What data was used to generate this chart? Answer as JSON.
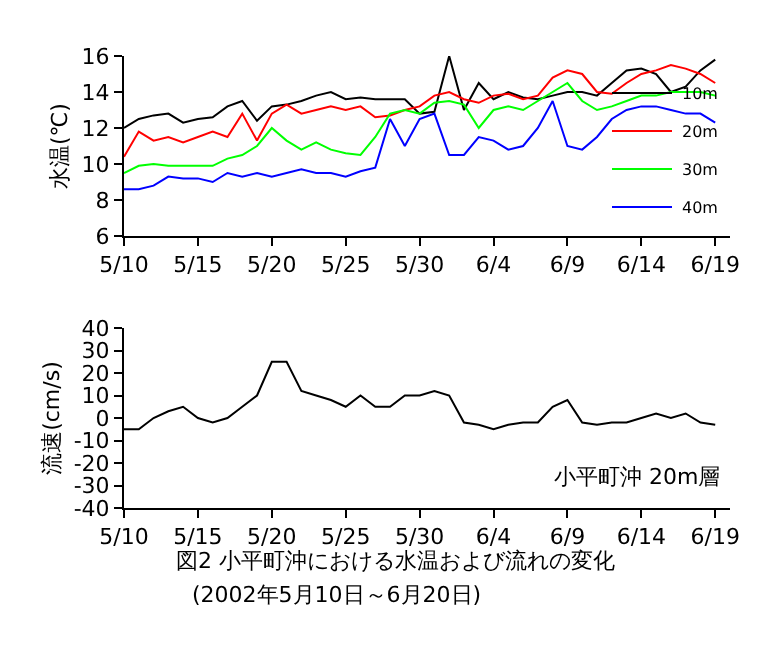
{
  "chart_data": [
    {
      "type": "line",
      "ylabel": "水温(℃)",
      "xlim": [
        "2002-05-10",
        "2002-06-20"
      ],
      "ylim": [
        6,
        16
      ],
      "yticks": [
        6,
        8,
        10,
        12,
        14,
        16
      ],
      "xticks": [
        {
          "value": "2002-05-10",
          "label": "5/10"
        },
        {
          "value": "2002-05-15",
          "label": "5/15"
        },
        {
          "value": "2002-05-20",
          "label": "5/20"
        },
        {
          "value": "2002-05-25",
          "label": "5/25"
        },
        {
          "value": "2002-05-30",
          "label": "5/30"
        },
        {
          "value": "2002-06-04",
          "label": "6/4"
        },
        {
          "value": "2002-06-09",
          "label": "6/9"
        },
        {
          "value": "2002-06-14",
          "label": "6/14"
        },
        {
          "value": "2002-06-19",
          "label": "6/19"
        }
      ],
      "x": [
        "2002-05-10",
        "2002-05-11",
        "2002-05-12",
        "2002-05-13",
        "2002-05-14",
        "2002-05-15",
        "2002-05-16",
        "2002-05-17",
        "2002-05-18",
        "2002-05-19",
        "2002-05-20",
        "2002-05-21",
        "2002-05-22",
        "2002-05-23",
        "2002-05-24",
        "2002-05-25",
        "2002-05-26",
        "2002-05-27",
        "2002-05-28",
        "2002-05-29",
        "2002-05-30",
        "2002-05-31",
        "2002-06-01",
        "2002-06-02",
        "2002-06-03",
        "2002-06-04",
        "2002-06-05",
        "2002-06-06",
        "2002-06-07",
        "2002-06-08",
        "2002-06-09",
        "2002-06-10",
        "2002-06-11",
        "2002-06-12",
        "2002-06-13",
        "2002-06-14",
        "2002-06-15",
        "2002-06-16",
        "2002-06-17",
        "2002-06-18",
        "2002-06-19"
      ],
      "legend": "bottom right",
      "marker": "none",
      "line_style": "solid",
      "series": [
        {
          "name": "10m",
          "color": "#000000",
          "values": [
            12,
            12.5,
            12.7,
            12.8,
            12.3,
            12.5,
            12.6,
            13.2,
            13.5,
            12.4,
            13.2,
            13.3,
            13.5,
            13.8,
            14.0,
            13.6,
            13.7,
            13.6,
            13.6,
            13.6,
            12.8,
            12.9,
            16.0,
            13.0,
            14.5,
            13.6,
            14.0,
            13.7,
            13.6,
            13.8,
            14.0,
            14.0,
            13.8,
            14.5,
            15.2,
            15.3,
            15.0,
            14.0,
            14.3,
            15.2,
            15.8
          ]
        },
        {
          "name": "20m",
          "color": "#ff0000",
          "values": [
            10.4,
            11.8,
            11.3,
            11.5,
            11.2,
            11.5,
            11.8,
            11.5,
            12.8,
            11.3,
            12.8,
            13.3,
            12.8,
            13.0,
            13.2,
            13.0,
            13.2,
            12.6,
            12.7,
            13.0,
            13.2,
            13.8,
            14.0,
            13.6,
            13.4,
            13.8,
            13.9,
            13.6,
            13.8,
            14.8,
            15.2,
            15.0,
            14.0,
            13.9,
            14.5,
            15.0,
            15.2,
            15.5,
            15.3,
            15.0,
            14.5
          ]
        },
        {
          "name": "30m",
          "color": "#00ff00",
          "values": [
            9.5,
            9.9,
            10.0,
            9.9,
            9.9,
            9.9,
            9.9,
            10.3,
            10.5,
            11.0,
            12.0,
            11.3,
            10.8,
            11.2,
            10.8,
            10.6,
            10.5,
            11.5,
            12.8,
            13.0,
            12.8,
            13.4,
            13.5,
            13.3,
            12.0,
            13.0,
            13.2,
            13.0,
            13.5,
            14.0,
            14.5,
            13.5,
            13.0,
            13.2,
            13.5,
            13.8,
            13.8,
            14.0,
            14.0,
            14.0,
            13.8
          ]
        },
        {
          "name": "40m",
          "color": "#0000ff",
          "values": [
            8.6,
            8.6,
            8.8,
            9.3,
            9.2,
            9.2,
            9.0,
            9.5,
            9.3,
            9.5,
            9.3,
            9.5,
            9.7,
            9.5,
            9.5,
            9.3,
            9.6,
            9.8,
            12.5,
            11.0,
            12.5,
            12.8,
            10.5,
            10.5,
            11.5,
            11.3,
            10.8,
            11.0,
            12.0,
            13.5,
            11.0,
            10.8,
            11.5,
            12.5,
            13.0,
            13.2,
            13.2,
            13.0,
            12.8,
            12.8,
            12.3
          ]
        }
      ]
    },
    {
      "type": "line",
      "ylabel": "流速(cm/s)",
      "xlim": [
        "2002-05-10",
        "2002-06-20"
      ],
      "ylim": [
        -40,
        40
      ],
      "yticks": [
        -40,
        -30,
        -20,
        -10,
        0,
        10,
        20,
        30,
        40
      ],
      "xticks": [
        {
          "value": "2002-05-10",
          "label": "5/10"
        },
        {
          "value": "2002-05-15",
          "label": "5/15"
        },
        {
          "value": "2002-05-20",
          "label": "5/20"
        },
        {
          "value": "2002-05-25",
          "label": "5/25"
        },
        {
          "value": "2002-05-30",
          "label": "5/30"
        },
        {
          "value": "2002-06-04",
          "label": "6/4"
        },
        {
          "value": "2002-06-09",
          "label": "6/9"
        },
        {
          "value": "2002-06-14",
          "label": "6/14"
        },
        {
          "value": "2002-06-19",
          "label": "6/19"
        }
      ],
      "x": [
        "2002-05-10",
        "2002-05-11",
        "2002-05-12",
        "2002-05-13",
        "2002-05-14",
        "2002-05-15",
        "2002-05-16",
        "2002-05-17",
        "2002-05-18",
        "2002-05-19",
        "2002-05-20",
        "2002-05-21",
        "2002-05-22",
        "2002-05-23",
        "2002-05-24",
        "2002-05-25",
        "2002-05-26",
        "2002-05-27",
        "2002-05-28",
        "2002-05-29",
        "2002-05-30",
        "2002-05-31",
        "2002-06-01",
        "2002-06-02",
        "2002-06-03",
        "2002-06-04",
        "2002-06-05",
        "2002-06-06",
        "2002-06-07",
        "2002-06-08",
        "2002-06-09",
        "2002-06-10",
        "2002-06-11",
        "2002-06-12",
        "2002-06-13",
        "2002-06-14",
        "2002-06-15",
        "2002-06-16",
        "2002-06-17",
        "2002-06-18",
        "2002-06-19"
      ],
      "legend": false,
      "marker": "none",
      "line_style": "solid",
      "series": [
        {
          "color": "#000000",
          "values": [
            -5,
            -5,
            0,
            3,
            5,
            0,
            -2,
            0,
            5,
            10,
            25,
            25,
            12,
            10,
            8,
            5,
            10,
            5,
            5,
            10,
            10,
            12,
            10,
            -2,
            -3,
            -5,
            -3,
            -2,
            -2,
            5,
            8,
            -2,
            -3,
            -2,
            -2,
            0,
            2,
            0,
            2,
            -2,
            -3
          ]
        }
      ],
      "annotations": [
        "小平町沖 20m層"
      ],
      "title": "図2 小平町沖における水温および流れの変化",
      "subtitle": "(2002年5月10日～6月20日)"
    }
  ]
}
